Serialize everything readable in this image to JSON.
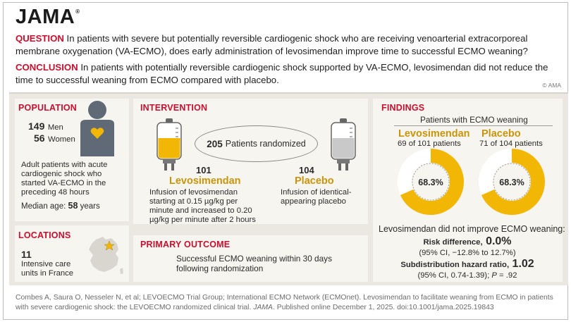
{
  "header": {
    "logo": "JAMA",
    "copyright": "© AMA"
  },
  "question": {
    "label": "QUESTION",
    "text": "In patients with severe but potentially reversible cardiogenic shock who are receiving venoarterial extracorporeal membrane oxygenation (VA-ECMO), does early administration of levosimendan improve time to successful ECMO weaning?"
  },
  "conclusion": {
    "label": "CONCLUSION",
    "text": "In patients with potentially reversible cardiogenic shock supported by VA-ECMO, levosimendan did not reduce the time to successful weaning from ECMO compared with placebo."
  },
  "population": {
    "title": "POPULATION",
    "men_count": "149",
    "men_label": "Men",
    "women_count": "56",
    "women_label": "Women",
    "description": "Adult patients with acute cardiogenic shock who started VA-ECMO in the preceding 48 hours",
    "median_age_label": "Median age:",
    "median_age_value": "58",
    "median_age_unit": "years"
  },
  "locations": {
    "title": "LOCATIONS",
    "count": "11",
    "description": "Intensive care units in France"
  },
  "intervention": {
    "title": "INTERVENTION",
    "randomized_count": "205",
    "randomized_label": "Patients randomized",
    "arms": [
      {
        "count": "101",
        "name": "Levosimendan",
        "description": "Infusion of levosimendan starting at 0.15 µg/kg per minute and increased to 0.20 µg/kg per minute after 2 hours"
      },
      {
        "count": "104",
        "name": "Placebo",
        "description": "Infusion of identical-appearing placebo"
      }
    ]
  },
  "primary_outcome": {
    "title": "PRIMARY OUTCOME",
    "text": "Successful ECMO weaning within 30 days following randomization"
  },
  "findings": {
    "title": "FINDINGS",
    "subtitle": "Patients with ECMO weaning",
    "arms": [
      {
        "name": "Levosimendan",
        "detail": "69 of 101 patients",
        "percent_label": "68.3%",
        "percent": 68.3
      },
      {
        "name": "Placebo",
        "detail": "71 of 104 patients",
        "percent_label": "68.3%",
        "percent": 68.3
      }
    ],
    "summary": "Levosimendan did not improve ECMO weaning:",
    "risk_diff_label": "Risk difference,",
    "risk_diff_value": "0.0%",
    "risk_diff_ci": "(95% CI, −12.8% to 12.7%)",
    "shr_label": "Subdistribution hazard ratio,",
    "shr_value": "1.02",
    "shr_ci": "(95% CI, 0.74-1.39);",
    "shr_p_label": "P",
    "shr_p_value": "= .92"
  },
  "footer": {
    "part1": "Combes A, Saura O, Nesseler N, et al; LEVOECMO Trial Group; International ECMO Network (ECMOnet). Levosimendan to facilitate weaning from ECMO in patients with severe cardiogenic shock: the LEVOECMO randomized clinical trial.",
    "journal": "JAMA",
    "part2": ". Published online December 1, 2025. doi:10.1001/jama.2025.19843"
  },
  "colors": {
    "accent_red": "#c8102e",
    "gold": "#f2b705",
    "panel": "#ebe8e1"
  },
  "icons": [
    "person-icon",
    "heart-icon",
    "france-map-icon",
    "star-icon",
    "iv-bag-icon"
  ]
}
